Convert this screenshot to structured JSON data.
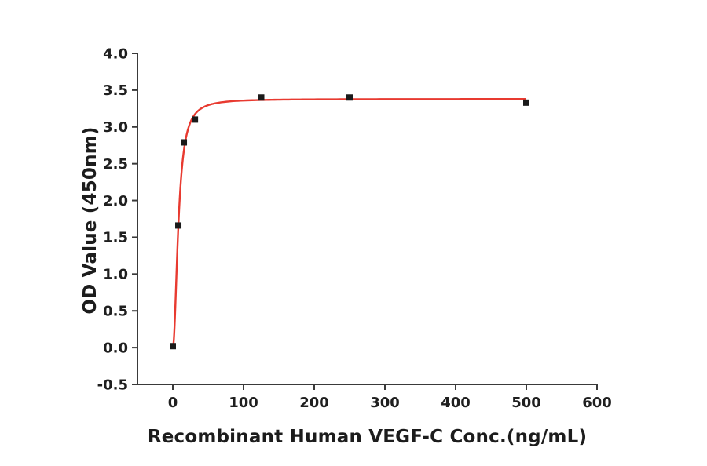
{
  "chart_data": {
    "type": "scatter",
    "title": "",
    "xlabel": "Recombinant Human VEGF-C Conc.(ng/mL)",
    "ylabel": "OD Value (450nm)",
    "xlim": [
      -50,
      600
    ],
    "ylim": [
      -0.5,
      4.0
    ],
    "x_ticks": [
      0,
      100,
      200,
      300,
      400,
      500,
      600
    ],
    "y_ticks": [
      -0.5,
      0.0,
      0.5,
      1.0,
      1.5,
      2.0,
      2.5,
      3.0,
      3.5,
      4.0
    ],
    "grid": false,
    "legend": null,
    "points": [
      [
        0,
        0.02
      ],
      [
        7.8,
        1.66
      ],
      [
        15.6,
        2.79
      ],
      [
        31.25,
        3.1
      ],
      [
        125,
        3.4
      ],
      [
        250,
        3.4
      ],
      [
        500,
        3.33
      ]
    ],
    "fit_curve": {
      "model": "hill",
      "ymax": 3.38,
      "k": 8,
      "n": 2,
      "x_start": 0,
      "x_end": 500
    },
    "point_color": "#1a1a1a",
    "curve_color": "#e83a30",
    "axis_color": "#3a3a3a",
    "marker": "square"
  }
}
